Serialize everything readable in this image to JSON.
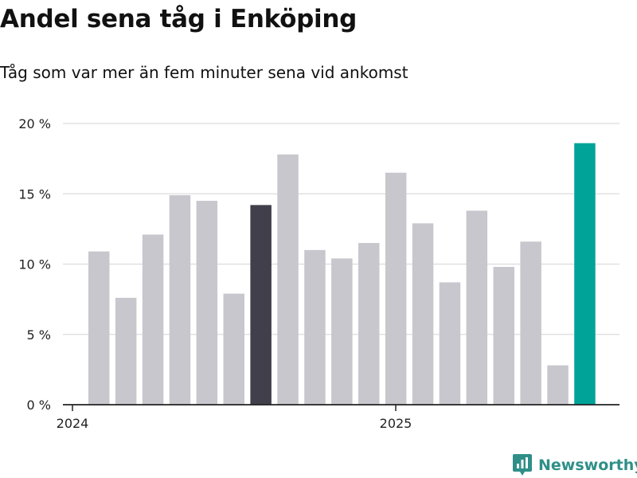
{
  "title": "Andel sena tåg i Enköping",
  "subtitle": "Tåg som var mer än fem minuter sena vid ankomst",
  "logo": {
    "text": "Newsworthy",
    "icon": "newsworthy-chart-icon",
    "color": "#2f8f88"
  },
  "colors": {
    "default_bar": "#c8c7cd",
    "highlight_dark": "#403f4b",
    "highlight_latest": "#00a398",
    "gridline": "#dcdcdc",
    "axis": "#222222"
  },
  "chart_data": {
    "type": "bar",
    "unit": "%",
    "ylim": [
      0,
      20
    ],
    "y_ticks": [
      0,
      5,
      10,
      15,
      20
    ],
    "y_tick_labels": [
      "0 %",
      "5 %",
      "10 %",
      "15 %",
      "20 %"
    ],
    "x_tick_labels": [
      "2024",
      "2025"
    ],
    "grid": true,
    "values": [
      10.9,
      7.6,
      12.1,
      14.9,
      14.5,
      7.9,
      14.2,
      17.8,
      11.0,
      10.4,
      11.5,
      16.5,
      12.9,
      8.7,
      13.8,
      9.8,
      11.6,
      2.8,
      18.6
    ],
    "highlight": {
      "dark_index": 6,
      "latest_index": 18
    }
  }
}
